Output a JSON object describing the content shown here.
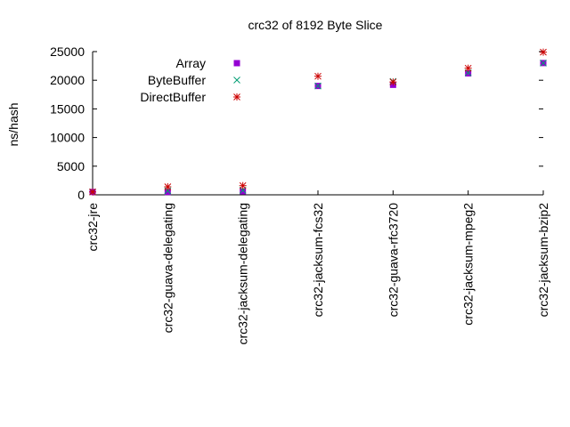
{
  "chart_data": {
    "type": "scatter",
    "title": "crc32 of 8192 Byte Slice",
    "xlabel": "",
    "ylabel": "ns/hash",
    "ylim": [
      0,
      25000
    ],
    "yticks": [
      0,
      5000,
      10000,
      15000,
      20000,
      25000
    ],
    "grid": false,
    "legend_position": "top-left-inside",
    "categories": [
      "crc32-jre",
      "crc32-guava-delegating",
      "crc32-jacksum-delegating",
      "crc32-jacksum-fcs32",
      "crc32-guava-rfc3720",
      "crc32-jacksum-mpeg2",
      "crc32-jacksum-bzip2"
    ],
    "series": [
      {
        "name": "Array",
        "marker": "square",
        "color": "#9400d3",
        "values": [
          500,
          500,
          600,
          19000,
          19200,
          21200,
          23000
        ]
      },
      {
        "name": "ByteBuffer",
        "marker": "x",
        "color": "#009e73",
        "values": [
          500,
          700,
          800,
          19000,
          19800,
          21300,
          23000
        ]
      },
      {
        "name": "DirectBuffer",
        "marker": "star",
        "color": "#cc0000",
        "values": [
          500,
          1400,
          1600,
          20700,
          19700,
          22100,
          24900
        ]
      }
    ]
  }
}
